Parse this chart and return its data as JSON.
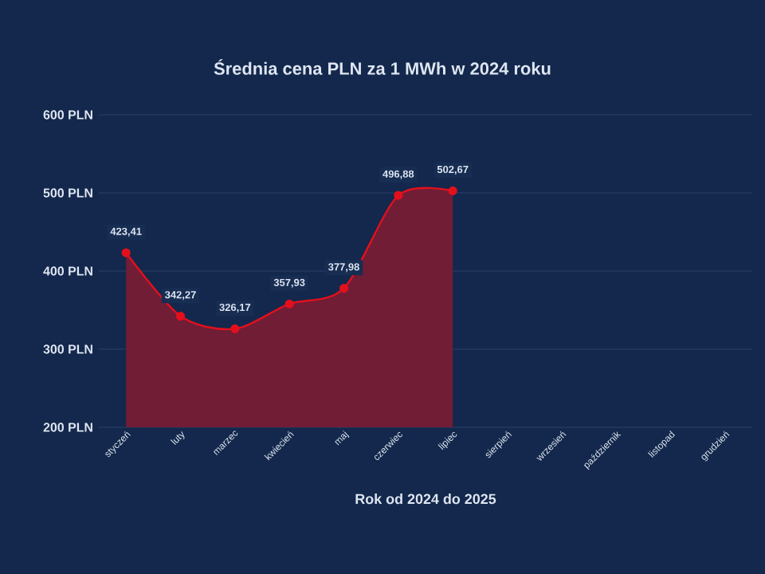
{
  "chart_data": {
    "type": "area",
    "title": "Średnia cena PLN za 1 MWh w 2024 roku",
    "xlabel": "Rok od 2024 do 2025",
    "categories": [
      "styczeń",
      "luty",
      "marzec",
      "kwiecień",
      "maj",
      "czerwiec",
      "lipiec",
      "sierpień",
      "wrzesień",
      "październik",
      "listopad",
      "grudzień"
    ],
    "series": [
      {
        "color": "#e3101c",
        "values": [
          423.41,
          342.27,
          326.17,
          357.93,
          377.98,
          496.88,
          502.67,
          null,
          null,
          null,
          null,
          null
        ],
        "value_labels": [
          "423,41",
          "342,27",
          "326,17",
          "357,93",
          "377,98",
          "496,88",
          "502,67",
          null,
          null,
          null,
          null,
          null
        ]
      }
    ],
    "ylim": [
      200,
      600
    ],
    "yticks": [
      {
        "value": 200,
        "label": "200 PLN"
      },
      {
        "value": 300,
        "label": "300 PLN"
      },
      {
        "value": 400,
        "label": "400 PLN"
      },
      {
        "value": 500,
        "label": "500 PLN"
      },
      {
        "value": 600,
        "label": "600 PLN"
      }
    ],
    "grid": "y",
    "marker": "circle",
    "line_style": "solid"
  }
}
